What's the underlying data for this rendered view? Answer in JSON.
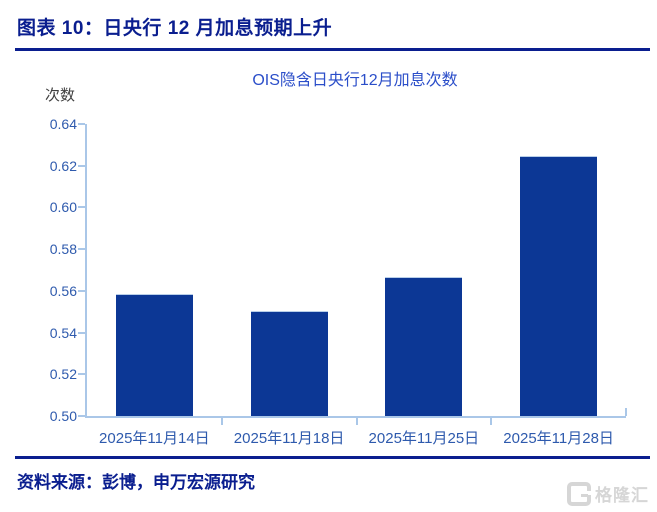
{
  "page": {
    "figure_label": "图表 10：日央行 12 月加息预期上升",
    "source_text": "资料来源：彭博，申万宏源研究",
    "watermark": {
      "brand": "格隆汇"
    }
  },
  "colors": {
    "heading_navy": "#0a1e8f",
    "bar_blue": "#0c3795",
    "axis_light_blue": "#aac7e8",
    "tick_label_blue": "#2e5aad",
    "chart_title_blue": "#2b4ec9",
    "unit_label_gray": "#3f3f3f",
    "watermark_gray": "#d6d6d6"
  },
  "chart_data": {
    "type": "bar",
    "title": "OIS隐含日央行12月加息次数",
    "ylabel": "次数",
    "categories": [
      "2025年11月14日",
      "2025年11月18日",
      "2025年11月25日",
      "2025年11月28日"
    ],
    "values": [
      0.558,
      0.55,
      0.566,
      0.624
    ],
    "ylim": [
      0.5,
      0.64
    ],
    "ytick_step": 0.02,
    "ytick_decimals": 2,
    "bar_width_fraction": 0.57,
    "grid": false,
    "legend": "none"
  }
}
